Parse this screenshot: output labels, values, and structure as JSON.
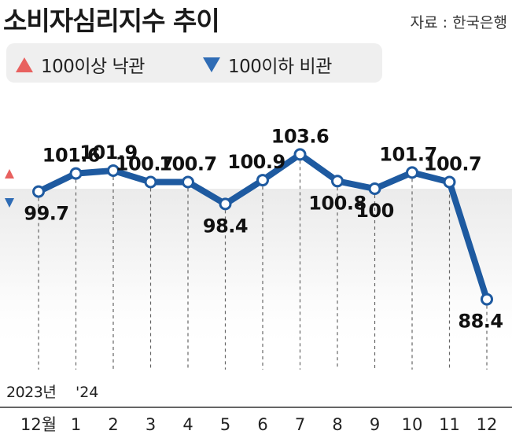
{
  "title": "소비자심리지수 추이",
  "source": "자료 : 한국은행",
  "legend": {
    "above": {
      "label": "100이상 낙관",
      "color": "#e8615f"
    },
    "below": {
      "label": "100이하 비관",
      "color": "#2f6cb5"
    }
  },
  "colors": {
    "line": "#1e5aa0",
    "marker_fill": "#ffffff",
    "below_band": "#ebebeb"
  },
  "chart_data": {
    "type": "line",
    "title": "소비자심리지수 추이",
    "xlabel": "",
    "ylabel": "",
    "reference_value": 100,
    "year_labels": [
      "2023년",
      "'24"
    ],
    "categories": [
      "12월",
      "1",
      "2",
      "3",
      "4",
      "5",
      "6",
      "7",
      "8",
      "9",
      "10",
      "11",
      "12"
    ],
    "series": [
      {
        "values": [
          99.7,
          101.6,
          101.9,
          100.7,
          100.7,
          98.4,
          100.9,
          103.6,
          100.8,
          100,
          101.7,
          100.7,
          88.4
        ]
      }
    ],
    "value_labels": [
      "99.7",
      "101.6",
      "101.9",
      "100.7",
      "100.7",
      "98.4",
      "100.9",
      "103.6",
      "100.8",
      "100",
      "101.7",
      "100.7",
      "88.4"
    ],
    "grid": false,
    "legend_position": "top-left"
  }
}
